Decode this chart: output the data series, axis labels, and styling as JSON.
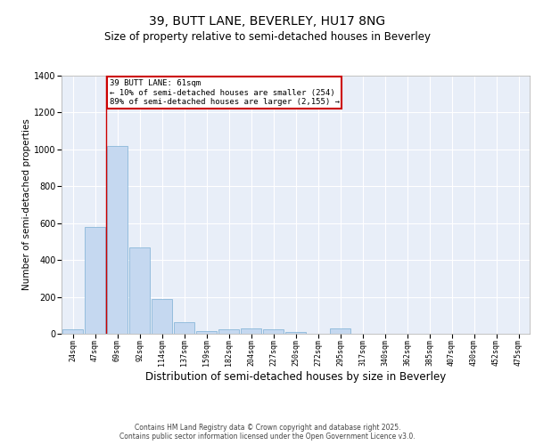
{
  "title_line1": "39, BUTT LANE, BEVERLEY, HU17 8NG",
  "title_line2": "Size of property relative to semi-detached houses in Beverley",
  "xlabel": "Distribution of semi-detached houses by size in Beverley",
  "ylabel": "Number of semi-detached properties",
  "categories": [
    "24sqm",
    "47sqm",
    "69sqm",
    "92sqm",
    "114sqm",
    "137sqm",
    "159sqm",
    "182sqm",
    "204sqm",
    "227sqm",
    "250sqm",
    "272sqm",
    "295sqm",
    "317sqm",
    "340sqm",
    "362sqm",
    "385sqm",
    "407sqm",
    "430sqm",
    "452sqm",
    "475sqm"
  ],
  "values": [
    25,
    580,
    1020,
    470,
    190,
    65,
    15,
    22,
    30,
    22,
    10,
    0,
    30,
    0,
    0,
    0,
    0,
    0,
    0,
    0,
    0
  ],
  "bar_color": "#c5d8f0",
  "bar_edge_color": "#7bafd4",
  "property_line_color": "#cc0000",
  "annotation_text": "39 BUTT LANE: 61sqm\n← 10% of semi-detached houses are smaller (254)\n89% of semi-detached houses are larger (2,155) →",
  "annotation_box_color": "#cc0000",
  "ylim": [
    0,
    1400
  ],
  "yticks": [
    0,
    200,
    400,
    600,
    800,
    1000,
    1200,
    1400
  ],
  "background_color": "#e8eef8",
  "footer_text": "Contains HM Land Registry data © Crown copyright and database right 2025.\nContains public sector information licensed under the Open Government Licence v3.0.",
  "title_fontsize": 10,
  "subtitle_fontsize": 8.5,
  "xlabel_fontsize": 8.5,
  "ylabel_fontsize": 7.5
}
